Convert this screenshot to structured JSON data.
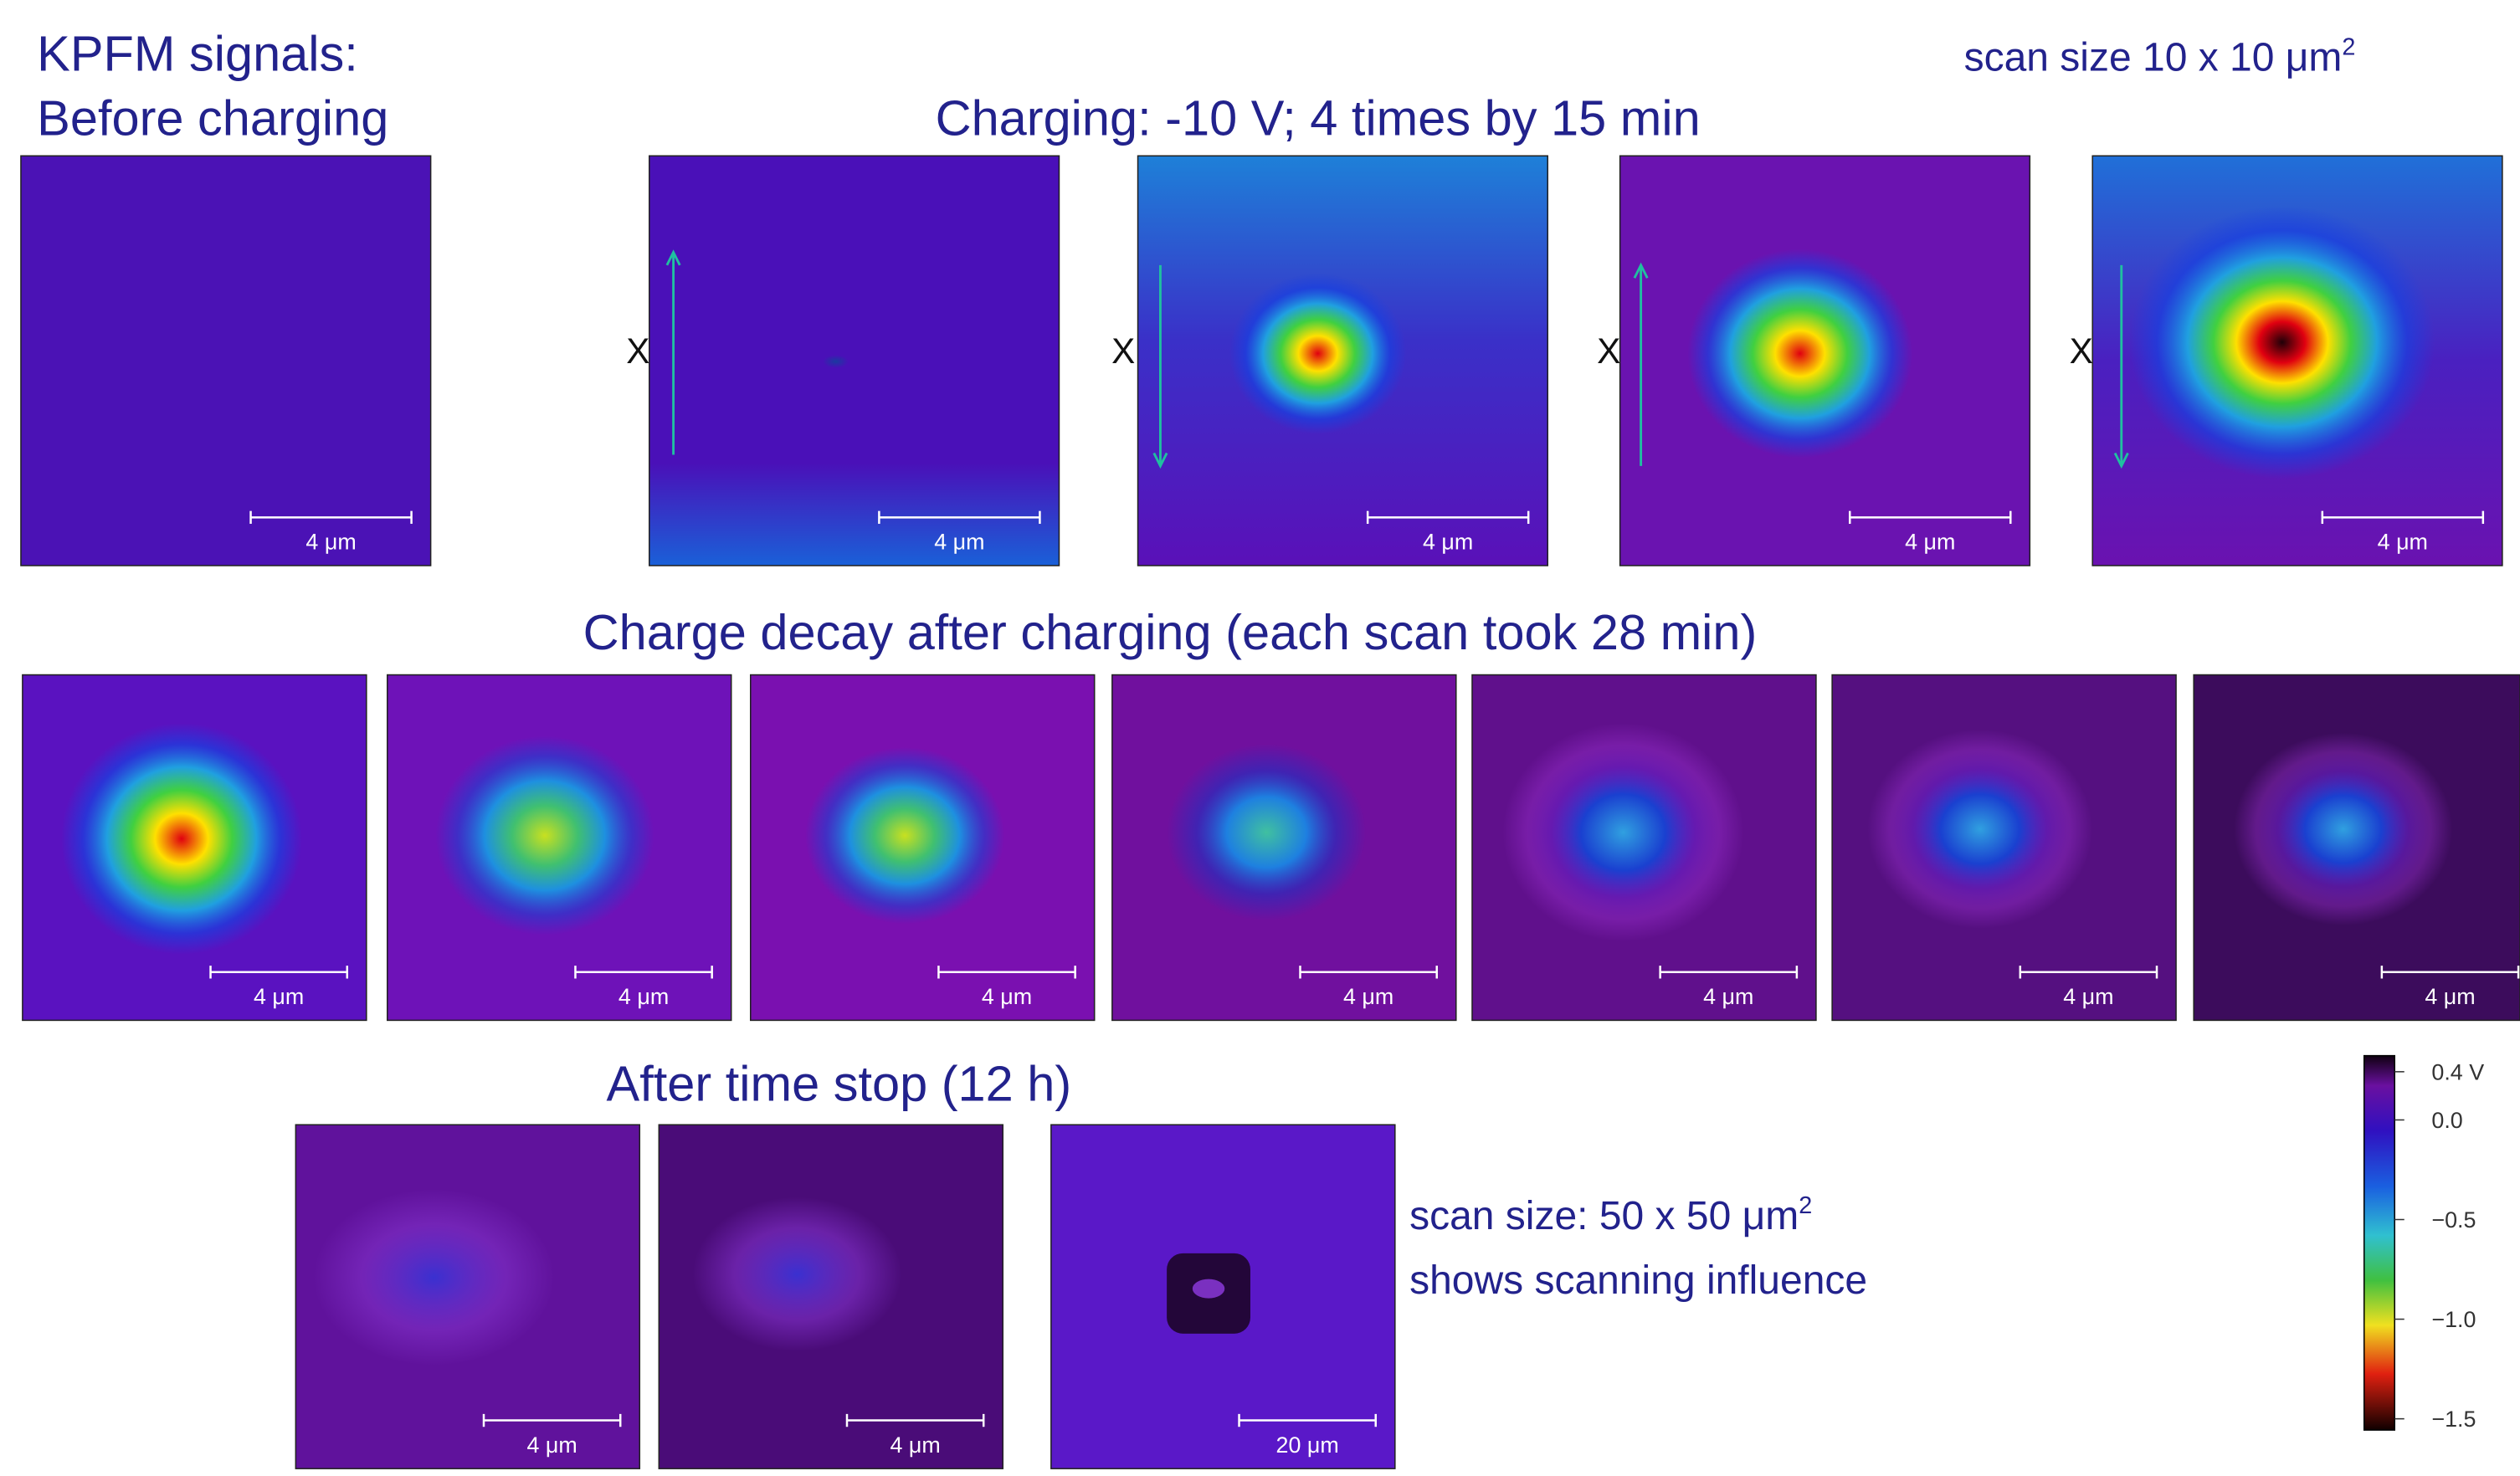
{
  "header": {
    "line1": "KPFM signals:",
    "line2": "Before charging",
    "charging_title": "Charging: -10 V; 4 times by 15 min",
    "scan_size": {
      "text": "scan size 10 x 10 μm",
      "sup": "2"
    }
  },
  "row1": {
    "panels": [
      {
        "scale_bar": "4 μm"
      },
      {
        "marker": "X",
        "scale_bar": "4 μm"
      },
      {
        "marker": "X",
        "scale_bar": "4 μm"
      },
      {
        "marker": "X",
        "scale_bar": "4 μm"
      },
      {
        "marker": "X",
        "scale_bar": "4 μm"
      }
    ]
  },
  "row2": {
    "title": "Charge decay after charging (each scan took 28 min)",
    "panels": [
      {
        "scale_bar": "4 μm"
      },
      {
        "scale_bar": "4 μm"
      },
      {
        "scale_bar": "4 μm"
      },
      {
        "scale_bar": "4 μm"
      },
      {
        "scale_bar": "4 μm"
      },
      {
        "scale_bar": "4 μm"
      },
      {
        "scale_bar": "4 μm"
      }
    ]
  },
  "row3": {
    "title": "After time stop (12 h)",
    "panels": [
      {
        "scale_bar": "4 μm"
      },
      {
        "scale_bar": "4 μm"
      },
      {
        "scale_bar": "20 μm"
      }
    ],
    "note": {
      "line1": "scan size: 50 x 50 μm",
      "sup": "2",
      "line2": "shows scanning influence"
    }
  },
  "colorbar": {
    "labels": [
      "0.4 V",
      "0.0",
      "−0.5",
      "−1.0",
      "−1.5"
    ]
  }
}
